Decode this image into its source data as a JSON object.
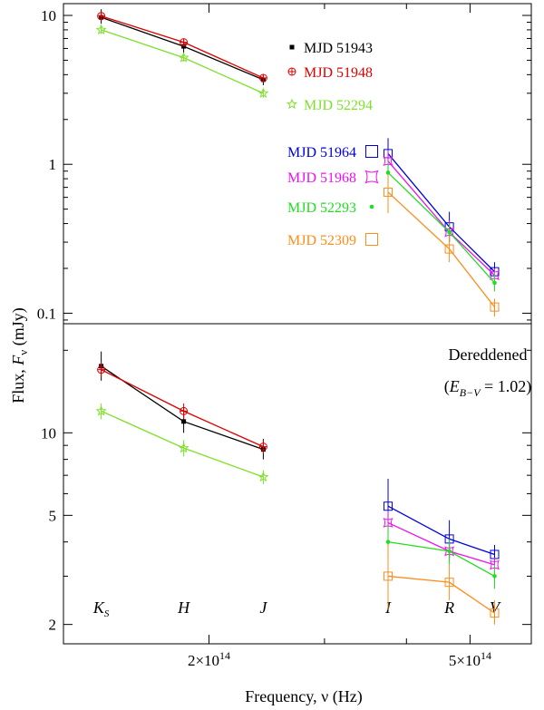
{
  "chart_data": [
    {
      "type": "line",
      "panel": "observed",
      "xscale": "log",
      "yscale": "log",
      "ylim": [
        0.085,
        12
      ],
      "yticks": [
        {
          "value": 0.1,
          "label": "0.1"
        },
        {
          "value": 1,
          "label": "1"
        },
        {
          "value": 10,
          "label": "10"
        }
      ],
      "series": [
        {
          "name": "MJD 51943",
          "color": "#000000",
          "marker": "square-filled",
          "points": [
            {
              "band": "Ks",
              "y": 9.7,
              "yerr": [
                8.8,
                11.0
              ]
            },
            {
              "band": "H",
              "y": 6.2,
              "yerr": [
                5.6,
                6.9
              ]
            },
            {
              "band": "J",
              "y": 3.7,
              "yerr": [
                3.4,
                4.0
              ]
            }
          ]
        },
        {
          "name": "MJD 51948",
          "color": "#dd0000",
          "marker": "circle-plus",
          "points": [
            {
              "band": "Ks",
              "y": 9.9,
              "yerr": [
                9.2,
                10.7
              ]
            },
            {
              "band": "H",
              "y": 6.6,
              "yerr": [
                6.2,
                7.0
              ]
            },
            {
              "band": "J",
              "y": 3.8,
              "yerr": [
                3.6,
                4.0
              ]
            }
          ]
        },
        {
          "name": "MJD 52294",
          "color": "#7ee02a",
          "marker": "star",
          "points": [
            {
              "band": "Ks",
              "y": 8.0,
              "yerr": [
                7.5,
                8.6
              ]
            },
            {
              "band": "H",
              "y": 5.2,
              "yerr": [
                4.9,
                5.5
              ]
            },
            {
              "band": "J",
              "y": 3.0,
              "yerr": [
                2.8,
                3.2
              ]
            }
          ]
        },
        {
          "name": "MJD 51964",
          "color": "#0000dd",
          "marker": "square-open",
          "points": [
            {
              "band": "I",
              "y": 1.18,
              "yerr": [
                0.85,
                1.5
              ]
            },
            {
              "band": "R",
              "y": 0.38,
              "yerr": [
                0.3,
                0.48
              ]
            },
            {
              "band": "V",
              "y": 0.19,
              "yerr": [
                0.16,
                0.22
              ]
            }
          ]
        },
        {
          "name": "MJD 51968",
          "color": "#ee11ee",
          "marker": "square-concave",
          "points": [
            {
              "band": "I",
              "y": 1.05,
              "yerr": [
                0.85,
                1.25
              ]
            },
            {
              "band": "R",
              "y": 0.35,
              "yerr": [
                0.3,
                0.42
              ]
            },
            {
              "band": "V",
              "y": 0.18,
              "yerr": [
                0.16,
                0.2
              ]
            }
          ]
        },
        {
          "name": "MJD 52293",
          "color": "#22dd22",
          "marker": "dot",
          "points": [
            {
              "band": "I",
              "y": 0.88,
              "yerr": [
                0.72,
                1.05
              ]
            },
            {
              "band": "R",
              "y": 0.35,
              "yerr": [
                0.3,
                0.4
              ]
            },
            {
              "band": "V",
              "y": 0.16,
              "yerr": [
                0.14,
                0.19
              ]
            }
          ]
        },
        {
          "name": "MJD 52309",
          "color": "#ff8c1a",
          "marker": "square-open",
          "points": [
            {
              "band": "I",
              "y": 0.65,
              "yerr": [
                0.47,
                0.85
              ]
            },
            {
              "band": "R",
              "y": 0.27,
              "yerr": [
                0.22,
                0.33
              ]
            },
            {
              "band": "V",
              "y": 0.11,
              "yerr": [
                0.095,
                0.125
              ]
            }
          ]
        }
      ]
    },
    {
      "type": "line",
      "panel": "dereddened",
      "xscale": "log",
      "yscale": "log",
      "ylim": [
        1.7,
        25
      ],
      "yticks": [
        {
          "value": 2,
          "label": "2"
        },
        {
          "value": 5,
          "label": "5"
        },
        {
          "value": 10,
          "label": "10"
        }
      ],
      "series": [
        {
          "name": "MJD 51943",
          "color": "#000000",
          "marker": "square-filled",
          "points": [
            {
              "band": "Ks",
              "y": 17.5,
              "yerr": [
                15.5,
                19.8
              ]
            },
            {
              "band": "H",
              "y": 11.0,
              "yerr": [
                10.0,
                12.1
              ]
            },
            {
              "band": "J",
              "y": 8.7,
              "yerr": [
                8.0,
                9.5
              ]
            }
          ]
        },
        {
          "name": "MJD 51948",
          "color": "#dd0000",
          "marker": "circle-plus",
          "points": [
            {
              "band": "Ks",
              "y": 17.0,
              "yerr": [
                16.0,
                18.2
              ]
            },
            {
              "band": "H",
              "y": 12.0,
              "yerr": [
                11.2,
                12.8
              ]
            },
            {
              "band": "J",
              "y": 8.9,
              "yerr": [
                8.4,
                9.4
              ]
            }
          ]
        },
        {
          "name": "MJD 52294",
          "color": "#7ee02a",
          "marker": "star",
          "points": [
            {
              "band": "Ks",
              "y": 12.0,
              "yerr": [
                11.2,
                12.8
              ]
            },
            {
              "band": "H",
              "y": 8.8,
              "yerr": [
                8.2,
                9.4
              ]
            },
            {
              "band": "J",
              "y": 6.9,
              "yerr": [
                6.5,
                7.3
              ]
            }
          ]
        },
        {
          "name": "MJD 51964",
          "color": "#0000dd",
          "marker": "square-open",
          "points": [
            {
              "band": "I",
              "y": 5.4,
              "yerr": [
                4.2,
                6.8
              ]
            },
            {
              "band": "R",
              "y": 4.1,
              "yerr": [
                3.5,
                4.8
              ]
            },
            {
              "band": "V",
              "y": 3.6,
              "yerr": [
                3.3,
                3.9
              ]
            }
          ]
        },
        {
          "name": "MJD 51968",
          "color": "#ee11ee",
          "marker": "square-concave",
          "points": [
            {
              "band": "I",
              "y": 4.7,
              "yerr": [
                4.3,
                5.2
              ]
            },
            {
              "band": "R",
              "y": 3.7,
              "yerr": [
                3.4,
                4.0
              ]
            },
            {
              "band": "V",
              "y": 3.3,
              "yerr": [
                3.1,
                3.5
              ]
            }
          ]
        },
        {
          "name": "MJD 52293",
          "color": "#22dd22",
          "marker": "dot",
          "points": [
            {
              "band": "I",
              "y": 4.0,
              "yerr": [
                3.5,
                4.6
              ]
            },
            {
              "band": "R",
              "y": 3.7,
              "yerr": [
                3.3,
                4.1
              ]
            },
            {
              "band": "V",
              "y": 3.0,
              "yerr": [
                2.7,
                3.3
              ]
            }
          ]
        },
        {
          "name": "MJD 52309",
          "color": "#ff8c1a",
          "marker": "square-open",
          "points": [
            {
              "band": "I",
              "y": 3.0,
              "yerr": [
                2.25,
                3.9
              ]
            },
            {
              "band": "R",
              "y": 2.85,
              "yerr": [
                2.45,
                3.3
              ]
            },
            {
              "band": "V",
              "y": 2.2,
              "yerr": [
                2.0,
                2.45
              ]
            }
          ]
        }
      ]
    }
  ],
  "bands": [
    {
      "key": "Ks",
      "main": "K",
      "sub": "S",
      "freq": 137000000000000.0
    },
    {
      "key": "H",
      "main": "H",
      "sub": "",
      "freq": 183000000000000.0
    },
    {
      "key": "J",
      "main": "J",
      "sub": "",
      "freq": 242000000000000.0
    },
    {
      "key": "I",
      "main": "I",
      "sub": "",
      "freq": 375000000000000.0
    },
    {
      "key": "R",
      "main": "R",
      "sub": "",
      "freq": 465000000000000.0
    },
    {
      "key": "V",
      "main": "V",
      "sub": "",
      "freq": 545000000000000.0
    }
  ],
  "xaxis": {
    "range": [
      120000000000000.0,
      620000000000000.0
    ],
    "label": "Frequency, ν (Hz)",
    "major_ticks": [
      {
        "value": 200000000000000.0,
        "mantissa": "2×10",
        "exp": "14"
      },
      {
        "value": 500000000000000.0,
        "mantissa": "5×10",
        "exp": "14"
      }
    ],
    "minor_ticks": [
      300000000000000.0,
      400000000000000.0
    ]
  },
  "yaxis": {
    "label_main": "Flux, ",
    "label_var": "F",
    "label_sub": "ν",
    "label_unit": " (mJy)"
  },
  "annotations": {
    "dereddened": "Dereddened",
    "ebv_open": "(",
    "ebv_var": "E",
    "ebv_sub": "B−V",
    "ebv_value": " = 1.02)"
  }
}
